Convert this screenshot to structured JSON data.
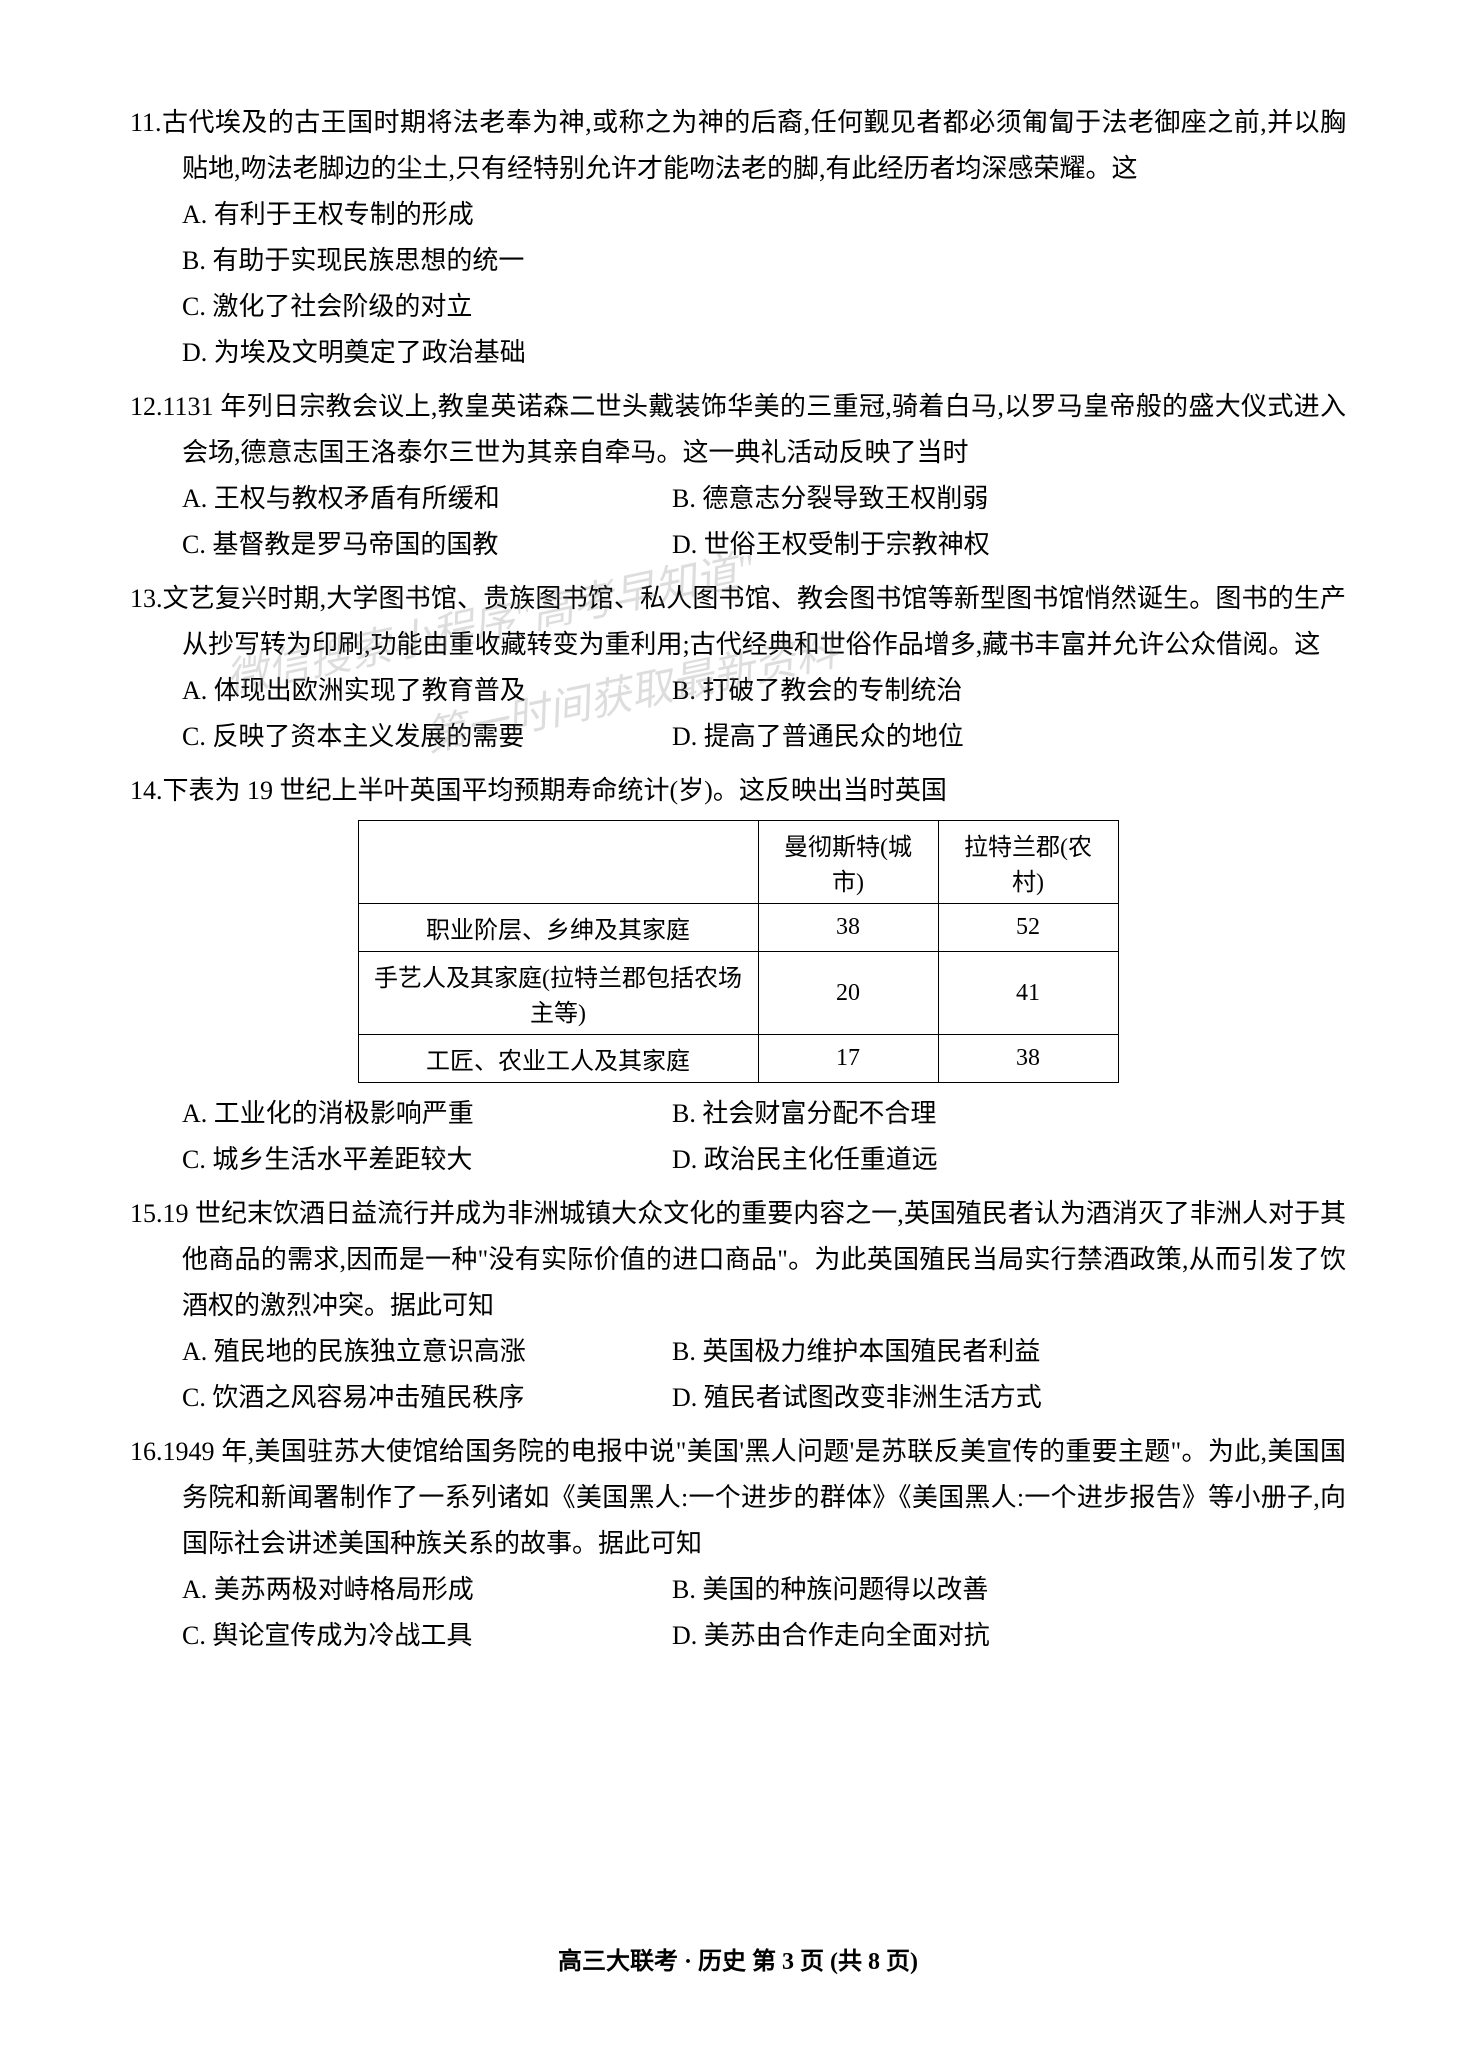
{
  "questions": [
    {
      "number": "11.",
      "text": "古代埃及的古王国时期将法老奉为神,或称之为神的后裔,任何觐见者都必须匍匐于法老御座之前,并以胸贴地,吻法老脚边的尘土,只有经特别允许才能吻法老的脚,有此经历者均深感荣耀。这",
      "options_layout": "single",
      "options": [
        "A. 有利于王权专制的形成",
        "B. 有助于实现民族思想的统一",
        "C. 激化了社会阶级的对立",
        "D. 为埃及文明奠定了政治基础"
      ]
    },
    {
      "number": "12.",
      "text": "1131 年列日宗教会议上,教皇英诺森二世头戴装饰华美的三重冠,骑着白马,以罗马皇帝般的盛大仪式进入会场,德意志国王洛泰尔三世为其亲自牵马。这一典礼活动反映了当时",
      "options_layout": "two-col",
      "option_pairs": [
        [
          "A. 王权与教权矛盾有所缓和",
          "B. 德意志分裂导致王权削弱"
        ],
        [
          "C. 基督教是罗马帝国的国教",
          "D. 世俗王权受制于宗教神权"
        ]
      ]
    },
    {
      "number": "13.",
      "text": "文艺复兴时期,大学图书馆、贵族图书馆、私人图书馆、教会图书馆等新型图书馆悄然诞生。图书的生产从抄写转为印刷,功能由重收藏转变为重利用;古代经典和世俗作品增多,藏书丰富并允许公众借阅。这",
      "options_layout": "two-col",
      "option_pairs": [
        [
          "A. 体现出欧洲实现了教育普及",
          "B. 打破了教会的专制统治"
        ],
        [
          "C. 反映了资本主义发展的需要",
          "D. 提高了普通民众的地位"
        ]
      ]
    },
    {
      "number": "14.",
      "text": "下表为 19 世纪上半叶英国平均预期寿命统计(岁)。这反映出当时英国",
      "has_table": true,
      "table": {
        "columns": [
          "",
          "曼彻斯特(城市)",
          "拉特兰郡(农村)"
        ],
        "rows": [
          [
            "职业阶层、乡绅及其家庭",
            "38",
            "52"
          ],
          [
            "手艺人及其家庭(拉特兰郡包括农场主等)",
            "20",
            "41"
          ],
          [
            "工匠、农业工人及其家庭",
            "17",
            "38"
          ]
        ],
        "border_color": "#000000",
        "font_size": 24
      },
      "options_layout": "two-col",
      "option_pairs": [
        [
          "A. 工业化的消极影响严重",
          "B. 社会财富分配不合理"
        ],
        [
          "C. 城乡生活水平差距较大",
          "D. 政治民主化任重道远"
        ]
      ]
    },
    {
      "number": "15.",
      "text": "19 世纪末饮酒日益流行并成为非洲城镇大众文化的重要内容之一,英国殖民者认为酒消灭了非洲人对于其他商品的需求,因而是一种\"没有实际价值的进口商品\"。为此英国殖民当局实行禁酒政策,从而引发了饮酒权的激烈冲突。据此可知",
      "options_layout": "two-col",
      "option_pairs": [
        [
          "A. 殖民地的民族独立意识高涨",
          "B. 英国极力维护本国殖民者利益"
        ],
        [
          "C. 饮酒之风容易冲击殖民秩序",
          "D. 殖民者试图改变非洲生活方式"
        ]
      ]
    },
    {
      "number": "16.",
      "text": "1949 年,美国驻苏大使馆给国务院的电报中说\"美国'黑人问题'是苏联反美宣传的重要主题\"。为此,美国国务院和新闻署制作了一系列诸如《美国黑人:一个进步的群体》《美国黑人:一个进步报告》等小册子,向国际社会讲述美国种族关系的故事。据此可知",
      "options_layout": "two-col",
      "option_pairs": [
        [
          "A. 美苏两极对峙格局形成",
          "B. 美国的种族问题得以改善"
        ],
        [
          "C. 舆论宣传成为冷战工具",
          "D. 美苏由合作走向全面对抗"
        ]
      ]
    }
  ],
  "footer": "高三大联考 · 历史 第 3 页 (共 8 页)",
  "watermark_line1": "微信搜索小程序\"高考早知道\"",
  "watermark_line2": "第一时间获取最新资料",
  "styles": {
    "page_bg": "#ffffff",
    "text_color": "#000000",
    "font_size_body": 26,
    "line_height": 46,
    "table_border": "#000000",
    "watermark_color": "rgba(120,120,120,0.25)"
  }
}
